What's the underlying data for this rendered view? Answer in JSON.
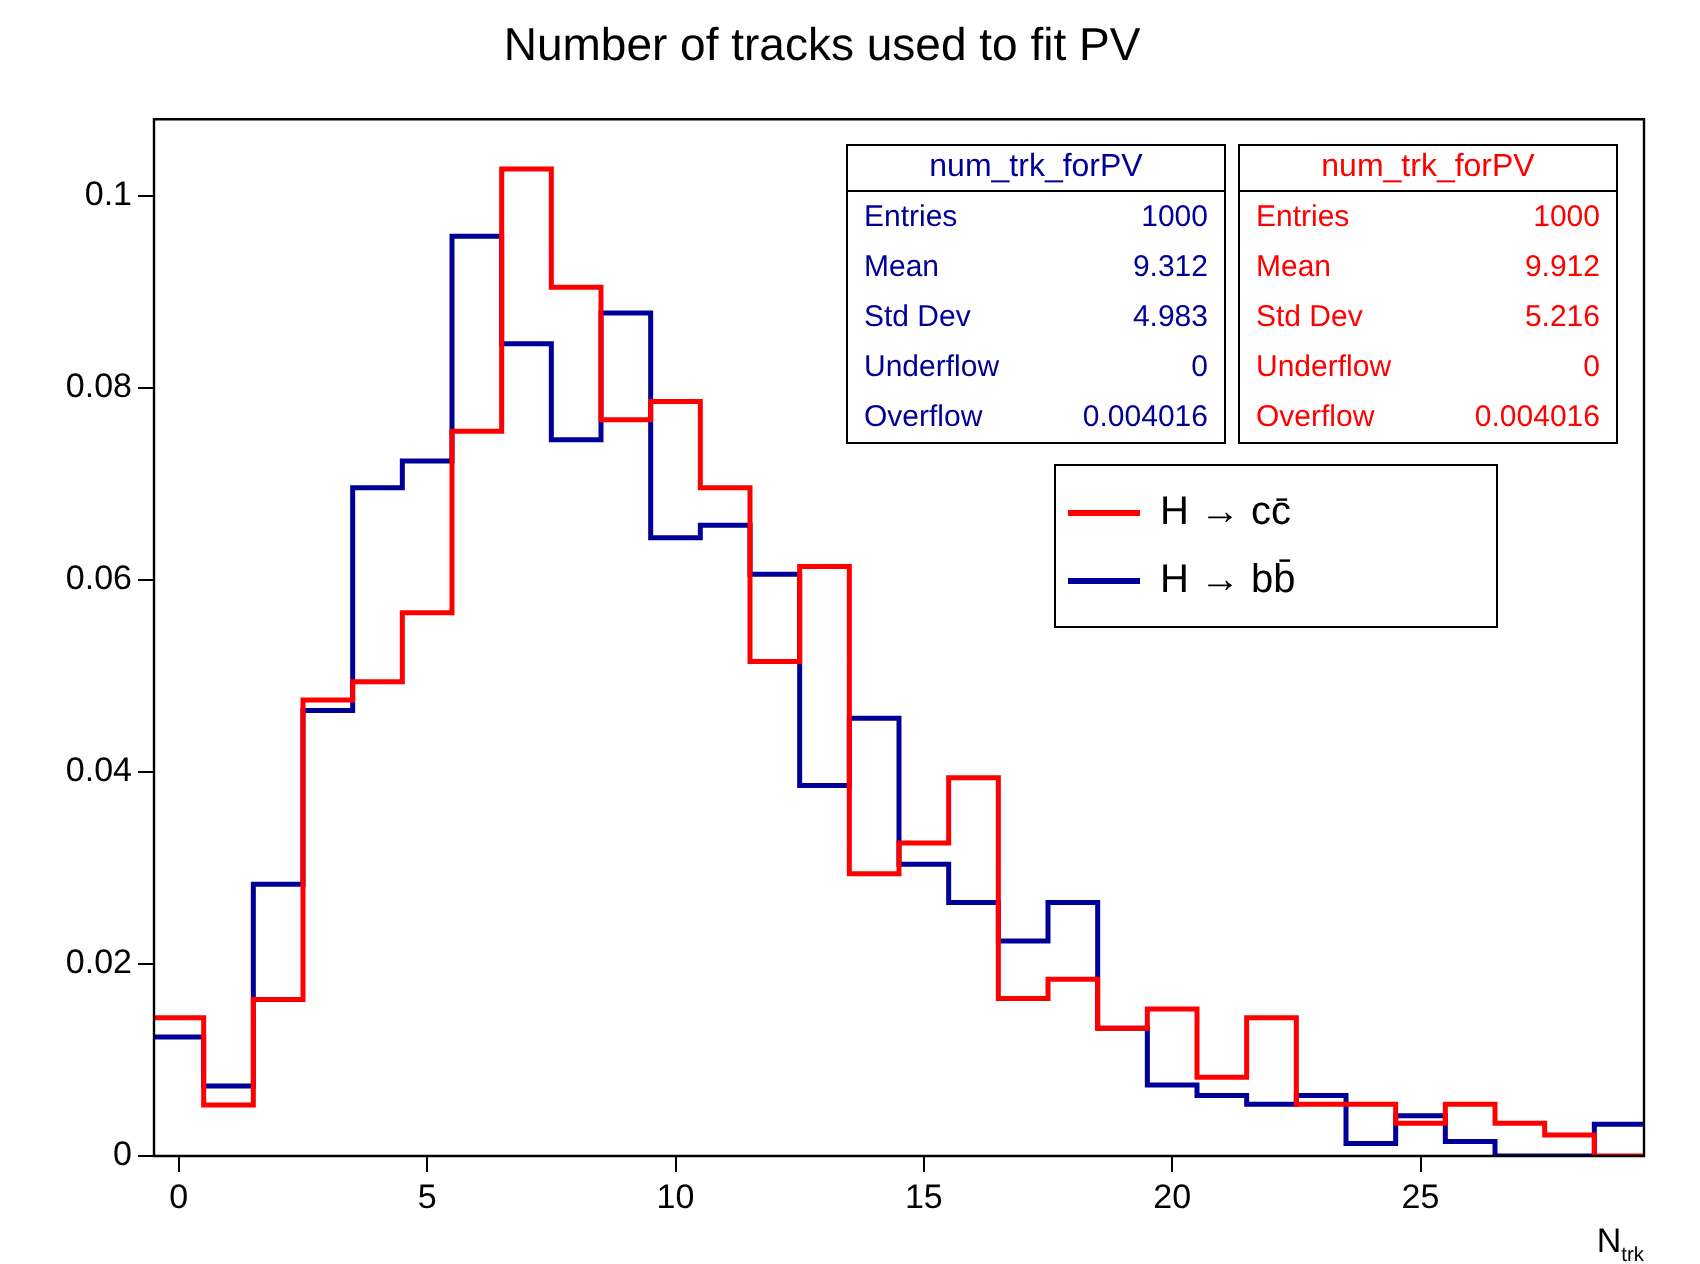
{
  "chart_data": {
    "type": "histogram",
    "title": "Number of tracks used to fit PV",
    "xlabel": "N$_{trk}$",
    "bins": [
      -0.5,
      0.5,
      1.5,
      2.5,
      3.5,
      4.5,
      5.5,
      6.5,
      7.5,
      8.5,
      9.5,
      10.5,
      11.5,
      12.5,
      13.5,
      14.5,
      15.5,
      16.5,
      17.5,
      18.5,
      19.5,
      20.5,
      21.5,
      22.5,
      23.5,
      24.5,
      25.5,
      26.5,
      27.5,
      28.5,
      29.5
    ],
    "series": [
      {
        "name": "H → cc̄",
        "color": "#ff0000",
        "values": [
          0.0144,
          0.0053,
          0.0163,
          0.0475,
          0.0494,
          0.0566,
          0.0755,
          0.1028,
          0.0905,
          0.0767,
          0.0786,
          0.0696,
          0.0515,
          0.0614,
          0.0294,
          0.0326,
          0.0394,
          0.0164,
          0.0184,
          0.0133,
          0.0153,
          0.0082,
          0.0144,
          0.0054,
          0.0054,
          0.0034,
          0.0054,
          0.0034,
          0.0022,
          0
        ]
      },
      {
        "name": "H → bb̄",
        "color": "#000099",
        "values": [
          0.0124,
          0.0073,
          0.0283,
          0.0464,
          0.0696,
          0.0724,
          0.0958,
          0.0846,
          0.0746,
          0.0878,
          0.0644,
          0.0657,
          0.0606,
          0.0386,
          0.0456,
          0.0304,
          0.0264,
          0.0224,
          0.0264,
          0.0133,
          0.0074,
          0.0063,
          0.0054,
          0.0063,
          0.0013,
          0.0042,
          0.0015,
          0,
          0,
          0.0033
        ]
      }
    ],
    "xlim": [
      -0.5,
      29.5
    ],
    "xticks": [
      0,
      5,
      10,
      15,
      20,
      25
    ],
    "ylim": [
      0,
      0.108
    ],
    "yticks": [
      0,
      0.02,
      0.04,
      0.06,
      0.08,
      0.1
    ],
    "grid": false,
    "legend": "top right",
    "annotations": [
      "num_trk_forPV",
      "Entries 1000",
      "Mean 9.312",
      "Std Dev 4.983",
      "Underflow 0",
      "Overflow 0.004016",
      "num_trk_forPV",
      "Entries 1000",
      "Mean 9.912",
      "Std Dev 5.216",
      "Underflow 0",
      "Overflow 0.004016"
    ]
  }
}
